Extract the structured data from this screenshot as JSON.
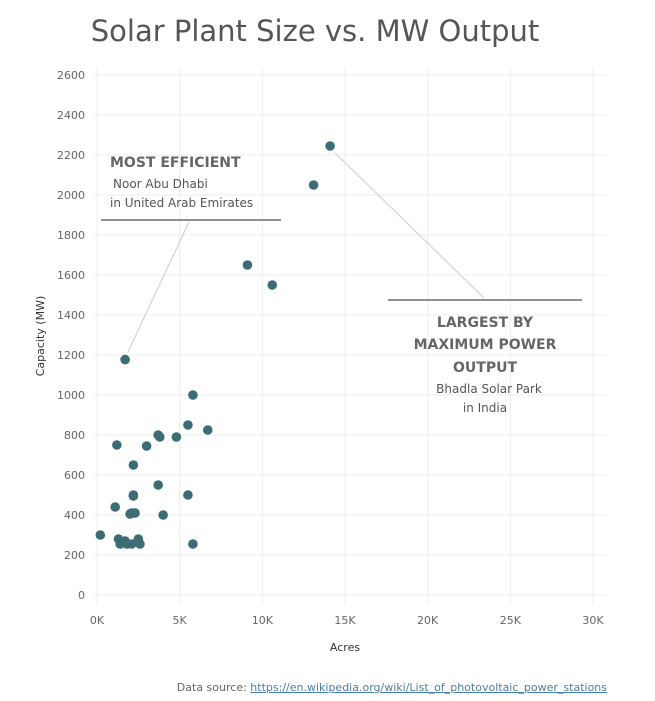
{
  "chart_data": {
    "type": "scatter",
    "title": "Solar Plant Size vs. MW Output",
    "xlabel": "Acres",
    "ylabel": "Capacity (MW)",
    "xlim": [
      0,
      30000
    ],
    "ylim": [
      0,
      2600
    ],
    "x_ticks": [
      0,
      5000,
      10000,
      15000,
      20000,
      25000,
      30000
    ],
    "x_tick_labels": [
      "0K",
      "5K",
      "10K",
      "15K",
      "20K",
      "25K",
      "30K"
    ],
    "y_ticks": [
      0,
      200,
      400,
      600,
      800,
      1000,
      1200,
      1400,
      1600,
      1800,
      2000,
      2200,
      2400,
      2600
    ],
    "y_tick_labels": [
      "0",
      "200",
      "400",
      "600",
      "800",
      "1000",
      "1200",
      "1400",
      "1600",
      "1800",
      "2000",
      "2200",
      "2400",
      "2600"
    ],
    "grid": true,
    "point_color": "#3d6d74",
    "points": [
      {
        "x": 14100,
        "y": 2245
      },
      {
        "x": 13100,
        "y": 2050
      },
      {
        "x": 9100,
        "y": 1650
      },
      {
        "x": 10600,
        "y": 1550
      },
      {
        "x": 1700,
        "y": 1177
      },
      {
        "x": 5800,
        "y": 1000
      },
      {
        "x": 5500,
        "y": 850
      },
      {
        "x": 6700,
        "y": 825
      },
      {
        "x": 3700,
        "y": 800
      },
      {
        "x": 3800,
        "y": 790
      },
      {
        "x": 4800,
        "y": 790
      },
      {
        "x": 1200,
        "y": 750
      },
      {
        "x": 3000,
        "y": 745
      },
      {
        "x": 2200,
        "y": 650
      },
      {
        "x": 3700,
        "y": 550
      },
      {
        "x": 2200,
        "y": 500
      },
      {
        "x": 2200,
        "y": 495
      },
      {
        "x": 5500,
        "y": 500
      },
      {
        "x": 1100,
        "y": 440
      },
      {
        "x": 2000,
        "y": 405
      },
      {
        "x": 2100,
        "y": 410
      },
      {
        "x": 2300,
        "y": 410
      },
      {
        "x": 4000,
        "y": 400
      },
      {
        "x": 200,
        "y": 300
      },
      {
        "x": 1300,
        "y": 280
      },
      {
        "x": 1700,
        "y": 270
      },
      {
        "x": 1400,
        "y": 255
      },
      {
        "x": 1800,
        "y": 255
      },
      {
        "x": 2100,
        "y": 255
      },
      {
        "x": 2500,
        "y": 280
      },
      {
        "x": 2600,
        "y": 255
      },
      {
        "x": 5800,
        "y": 255
      }
    ],
    "annotations": [
      {
        "heading": "MOST EFFICIENT",
        "lines": [
          "Noor Abu Dhabi",
          "in United Arab Emirates"
        ],
        "point": {
          "x": 1700,
          "y": 1177
        }
      },
      {
        "heading": [
          "LARGEST BY",
          "MAXIMUM POWER",
          "OUTPUT"
        ],
        "lines": [
          "Bhadla Solar Park",
          "in India"
        ],
        "point": {
          "x": 14100,
          "y": 2245
        }
      }
    ]
  },
  "source": {
    "label": "Data source: ",
    "link_text": "https://en.wikipedia.org/wiki/List_of_photovoltaic_power_stations"
  }
}
